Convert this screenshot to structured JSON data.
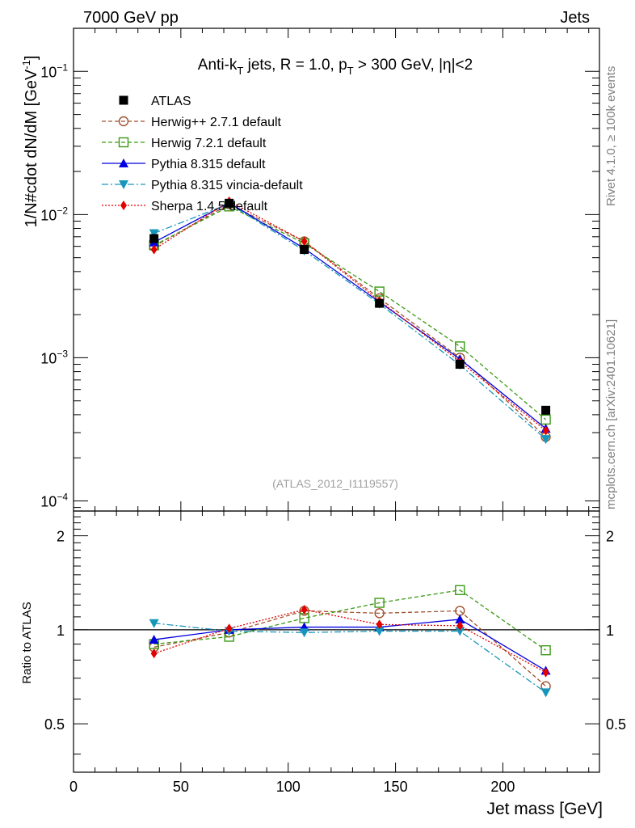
{
  "header": {
    "left": "7000 GeV pp",
    "right": "Jets"
  },
  "side_labels": {
    "rivet": "Rivet 4.1.0, ≥ 100k events",
    "mcplots": "mcplots.cern.ch [arXiv:2401.10621]"
  },
  "watermark": "(ATLAS_2012_I1119557)",
  "colors": {
    "atlas": "#000000",
    "herwigpp": "#a0522d",
    "herwig7": "#3a9a14",
    "pythia": "#0000e0",
    "vincia": "#1796bb",
    "sherpa": "#e30000"
  },
  "chart_data": {
    "type": "line",
    "title": "Anti-k_T jets, R = 1.0, p_T > 300 GeV, |η|<2",
    "xlabel": "Jet mass [GeV]",
    "ylabel": "1/N#cdot dN/dM [GeV⁻¹]",
    "ratio_ylabel": "Ratio to ATLAS",
    "xlim": [
      0,
      245
    ],
    "ylim": [
      8.5e-05,
      0.2
    ],
    "ratio_ylim": [
      0.35,
      2.4
    ],
    "x": [
      37.5,
      72.5,
      107.5,
      142.5,
      180,
      220
    ],
    "xticks": [
      0,
      50,
      100,
      150,
      200
    ],
    "xtick_labels": [
      "0",
      "50",
      "100",
      "150",
      "200"
    ],
    "yticks": [
      0.0001,
      0.001,
      0.01,
      0.1
    ],
    "ytick_labels": [
      {
        "base": "10",
        "exp": "−4"
      },
      {
        "base": "10",
        "exp": "−3"
      },
      {
        "base": "10",
        "exp": "−2"
      },
      {
        "base": "10",
        "exp": "−1"
      }
    ],
    "ratio_yticks": [
      0.5,
      1,
      2
    ],
    "ratio_ytick_labels": [
      "0.5",
      "1",
      "2"
    ],
    "series": [
      {
        "name": "ATLAS",
        "key": "atlas",
        "marker": "square",
        "dash": "",
        "line": false,
        "values": [
          0.0068,
          0.012,
          0.0057,
          0.0024,
          0.0009,
          0.00043
        ],
        "ratio": [
          1.0,
          1.0,
          1.0,
          1.0,
          1.0,
          1.0
        ]
      },
      {
        "name": "Herwig++ 2.7.1 default",
        "key": "herwigpp",
        "marker": "circle-open",
        "dash": "5,3",
        "line": true,
        "values": [
          0.006,
          0.0118,
          0.0065,
          0.0026,
          0.001,
          0.00028
        ],
        "ratio": [
          0.88,
          0.98,
          1.15,
          1.13,
          1.15,
          0.66
        ]
      },
      {
        "name": "Herwig 7.2.1 default",
        "key": "herwig7",
        "marker": "square-open",
        "dash": "5,3",
        "line": true,
        "values": [
          0.0061,
          0.0114,
          0.0063,
          0.0029,
          0.0012,
          0.00037
        ],
        "ratio": [
          0.9,
          0.95,
          1.09,
          1.22,
          1.34,
          0.86
        ]
      },
      {
        "name": "Pythia 8.315 default",
        "key": "pythia",
        "marker": "triangle-up",
        "dash": "",
        "line": true,
        "values": [
          0.0064,
          0.0121,
          0.0058,
          0.00245,
          0.00098,
          0.00032
        ],
        "ratio": [
          0.93,
          1.0,
          1.02,
          1.02,
          1.08,
          0.74
        ]
      },
      {
        "name": "Pythia 8.315 vincia-default",
        "key": "vincia",
        "marker": "triangle-down",
        "dash": "8,3,2,3",
        "line": true,
        "values": [
          0.0074,
          0.0119,
          0.0056,
          0.00238,
          0.00089,
          0.00027
        ],
        "ratio": [
          1.05,
          0.99,
          0.98,
          0.99,
          0.99,
          0.63
        ]
      },
      {
        "name": "Sherpa 1.4.5 default",
        "key": "sherpa",
        "marker": "diamond",
        "dash": "2,2",
        "line": true,
        "values": [
          0.0057,
          0.0124,
          0.0065,
          0.0025,
          0.00094,
          0.00031
        ],
        "ratio": [
          0.84,
          1.01,
          1.16,
          1.04,
          1.03,
          0.73
        ]
      }
    ]
  }
}
